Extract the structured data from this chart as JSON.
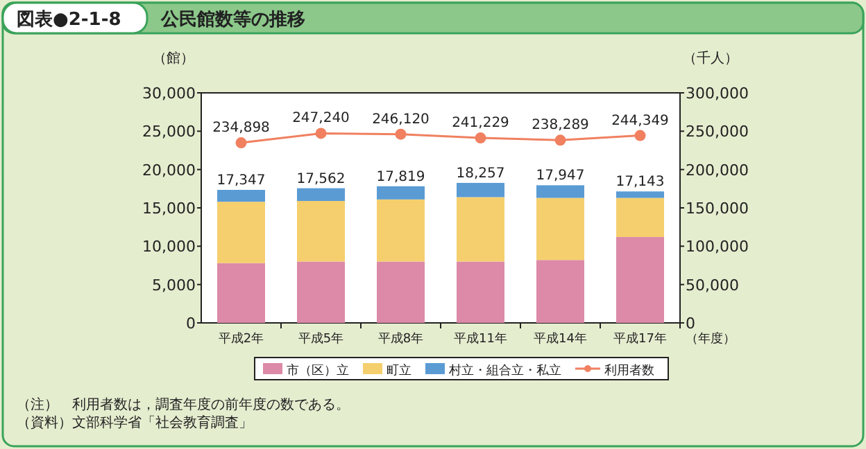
{
  "chart_data": {
    "type": "bar",
    "stacked": true,
    "title": "公民館数等の推移",
    "annotations": [
      "図表●2-1-8",
      "（注）　利用者数は，調査年度の前年度の数である。",
      "（資料）文部科学省「社会教育調査」"
    ],
    "ylabel": "（館）",
    "y2label": "（千人）",
    "xlabel": "（年度）",
    "categories": [
      "平成2年",
      "平成5年",
      "平成8年",
      "平成11年",
      "平成14年",
      "平成17年"
    ],
    "series": [
      {
        "name": "市（区）立",
        "color": "#dc8aa8",
        "values": [
          7800,
          8000,
          8000,
          8000,
          8200,
          11200
        ]
      },
      {
        "name": "町立",
        "color": "#f5cf6e",
        "values": [
          8000,
          7900,
          8100,
          8400,
          8100,
          5100
        ]
      },
      {
        "name": "村立・組合立・私立",
        "color": "#5a9bd4",
        "values": [
          1547,
          1662,
          1719,
          1857,
          1647,
          843
        ]
      },
      {
        "name": "利用者数",
        "type": "line",
        "axis": "y2",
        "color": "#f08060",
        "marker": "circle",
        "values": [
          234898,
          247240,
          246120,
          241229,
          238289,
          244349
        ],
        "value_labels": [
          "234,898",
          "247,240",
          "246,120",
          "241,229",
          "238,289",
          "244,349"
        ]
      }
    ],
    "totals": [
      "17,347",
      "17,562",
      "17,819",
      "18,257",
      "17,947",
      "17,143"
    ],
    "ylim": [
      0,
      30000
    ],
    "yticks": [
      {
        "value": 0,
        "label": "0"
      },
      {
        "value": 5000,
        "label": "5,000"
      },
      {
        "value": 10000,
        "label": "10,000"
      },
      {
        "value": 15000,
        "label": "15,000"
      },
      {
        "value": 20000,
        "label": "20,000"
      },
      {
        "value": 25000,
        "label": "25,000"
      },
      {
        "value": 30000,
        "label": "30,000"
      }
    ],
    "y2lim": [
      0,
      300000
    ],
    "y2ticks": [
      {
        "value": 0,
        "label": "0"
      },
      {
        "value": 50000,
        "label": "50,000"
      },
      {
        "value": 100000,
        "label": "100,000"
      },
      {
        "value": 150000,
        "label": "150,000"
      },
      {
        "value": 200000,
        "label": "200,000"
      },
      {
        "value": 250000,
        "label": "250,000"
      },
      {
        "value": 300000,
        "label": "300,000"
      }
    ],
    "legend": "bottom",
    "grid": false
  }
}
